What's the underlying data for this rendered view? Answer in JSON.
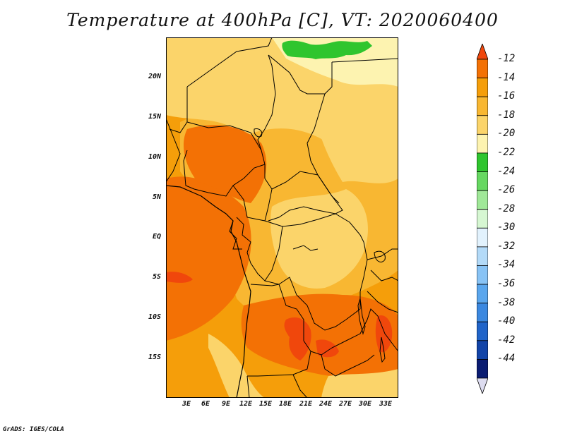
{
  "title": "Temperature at 400hPa [C], VT: 2020060400",
  "footer": "GrADS: IGES/COLA",
  "y_axis": {
    "ticks": [
      "20N",
      "15N",
      "10N",
      "5N",
      "EQ",
      "5S",
      "10S",
      "15S"
    ]
  },
  "x_axis": {
    "ticks": [
      "3E",
      "6E",
      "9E",
      "12E",
      "15E",
      "18E",
      "21E",
      "24E",
      "27E",
      "30E",
      "33E"
    ]
  },
  "colorbar": {
    "labels": [
      "-12",
      "-14",
      "-16",
      "-18",
      "-20",
      "-22",
      "-24",
      "-26",
      "-28",
      "-30",
      "-32",
      "-34",
      "-36",
      "-38",
      "-40",
      "-42",
      "-44"
    ],
    "colors": [
      "#f0470c",
      "#f37105",
      "#f59e0a",
      "#f8b732",
      "#fbd46a",
      "#fdf3b0",
      "#2fc52e",
      "#66d861",
      "#a0e898",
      "#d6f7d2",
      "#e2f2fd",
      "#b3daf8",
      "#88c3f5",
      "#5aa6ed",
      "#3b88e0",
      "#2064c9",
      "#1244a8",
      "#0a1c72",
      "#dddcf0"
    ]
  },
  "map": {
    "colors": {
      "ocean_base": "#f59e0a",
      "land_base": "#f8b732",
      "pale": "#fbd46a",
      "palest": "#fdf3b0",
      "warm": "#f37105",
      "hot": "#f0470c",
      "green": "#2fc52e"
    }
  }
}
